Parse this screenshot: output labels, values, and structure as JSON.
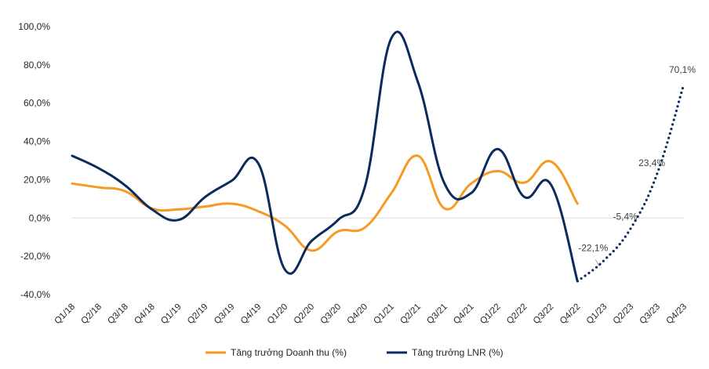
{
  "chart_data": {
    "type": "line",
    "title": "",
    "xlabel": "",
    "ylabel": "",
    "ylim": [
      -40,
      100
    ],
    "y_ticks": [
      -40,
      -20,
      0,
      20,
      40,
      60,
      80,
      100
    ],
    "y_tick_labels": [
      "-40,0%",
      "-20,0%",
      "0,0%",
      "20,0%",
      "40,0%",
      "60,0%",
      "80,0%",
      "100,0%"
    ],
    "grid": false,
    "zero_line": true,
    "legend_position": "bottom",
    "categories": [
      "Q1/18",
      "Q2/18",
      "Q3/18",
      "Q4/18",
      "Q1/19",
      "Q2/19",
      "Q3/19",
      "Q4/19",
      "Q1/20",
      "Q2/20",
      "Q3/20",
      "Q4/20",
      "Q1/21",
      "Q2/21",
      "Q3/21",
      "Q4/21",
      "Q1/22",
      "Q2/22",
      "Q3/22",
      "Q4/22",
      "Q1/23",
      "Q2/23",
      "Q3/23",
      "Q4/23"
    ],
    "series": [
      {
        "name": "Tăng trưởng Doanh thu (%)",
        "color": "#F59A23",
        "style": "solid",
        "values": [
          18,
          16,
          14,
          5,
          4.5,
          6,
          7.5,
          3.5,
          -4,
          -17,
          -7,
          -5,
          13,
          32.5,
          5,
          18,
          24.5,
          18.5,
          29.5,
          7.5,
          null,
          null,
          null,
          null
        ]
      },
      {
        "name": "Tăng trưởng LNR (%)",
        "color": "#0D2A5C",
        "style": "solid",
        "values": [
          32.5,
          26,
          17,
          4.5,
          -1,
          11,
          19.5,
          28.5,
          -27,
          -12,
          -1,
          16,
          94,
          71,
          18,
          13,
          36,
          11,
          17.5,
          -33,
          null,
          null,
          null,
          null
        ]
      },
      {
        "name": "",
        "color": "#0D2A5C",
        "style": "dotted",
        "values": [
          null,
          null,
          null,
          null,
          null,
          null,
          null,
          null,
          null,
          null,
          null,
          null,
          null,
          null,
          null,
          null,
          null,
          null,
          null,
          -33,
          -22.1,
          -5.4,
          23.4,
          70.1
        ]
      }
    ],
    "annotations": [
      {
        "text": "-22,1%",
        "category": "Q1/23",
        "value": -22.1
      },
      {
        "text": "-5,4%",
        "category": "Q2/23",
        "value": -5.4
      },
      {
        "text": "23,4%",
        "category": "Q3/23",
        "value": 23.4
      },
      {
        "text": "70,1%",
        "category": "Q4/23",
        "value": 70.1
      }
    ]
  }
}
